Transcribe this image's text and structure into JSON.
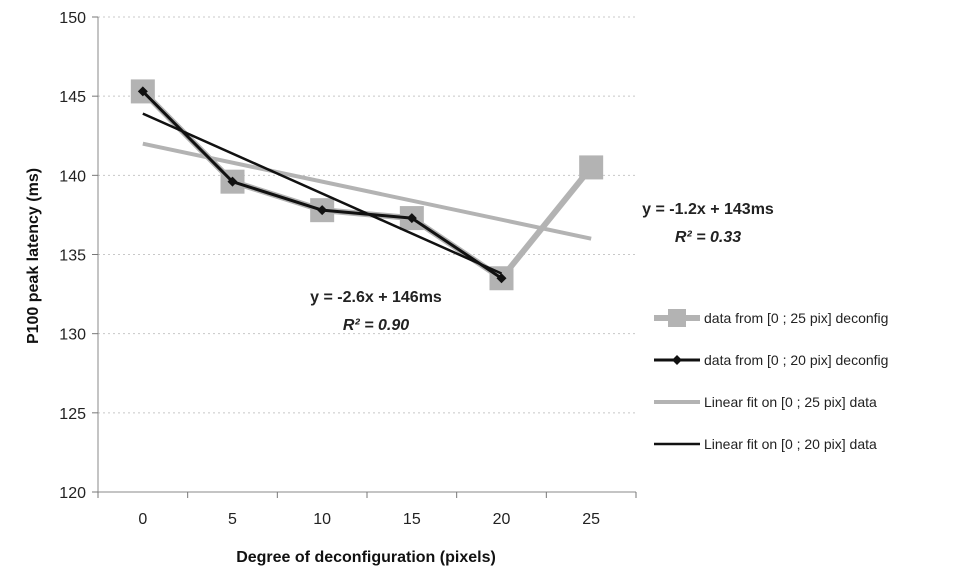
{
  "chart_data": {
    "type": "line",
    "xlabel": "Degree of deconfiguration (pixels)",
    "ylabel": "P100 peak latency (ms)",
    "xlim": [
      -2.5,
      27.5
    ],
    "ylim": [
      120,
      150
    ],
    "x_ticks": [
      "0",
      "5",
      "10",
      "15",
      "20",
      "25"
    ],
    "y_ticks": [
      "120",
      "125",
      "130",
      "135",
      "140",
      "145",
      "150"
    ],
    "grid": "horizontal dotted",
    "legend_position": "right",
    "series": [
      {
        "name": "data from [0 ; 25 pix] deconfig",
        "color": "#b3b3b3",
        "marker": "square",
        "x": [
          0,
          5,
          10,
          15,
          20,
          25
        ],
        "y": [
          145.3,
          139.6,
          137.8,
          137.3,
          133.5,
          140.5
        ]
      },
      {
        "name": "data from [0 ; 20 pix] deconfig",
        "color": "#111111",
        "marker": "diamond",
        "x": [
          0,
          5,
          10,
          15,
          20
        ],
        "y": [
          145.3,
          139.6,
          137.8,
          137.3,
          133.5
        ]
      },
      {
        "name": "Linear fit on [0 ; 25 pix] data",
        "color": "#b3b3b3",
        "marker": "none",
        "x": [
          0,
          25
        ],
        "y": [
          142.0,
          136.0
        ]
      },
      {
        "name": "Linear fit on [0 ; 20 pix] data",
        "color": "#111111",
        "marker": "none",
        "x": [
          0,
          20
        ],
        "y": [
          143.9,
          133.8
        ]
      }
    ],
    "annotations": [
      {
        "id": "fit25",
        "equation": "y = -1.2x + 143ms",
        "r2": "R² = 0.33"
      },
      {
        "id": "fit20",
        "equation": "y = -2.6x + 146ms",
        "r2": "R² = 0.90"
      }
    ]
  }
}
